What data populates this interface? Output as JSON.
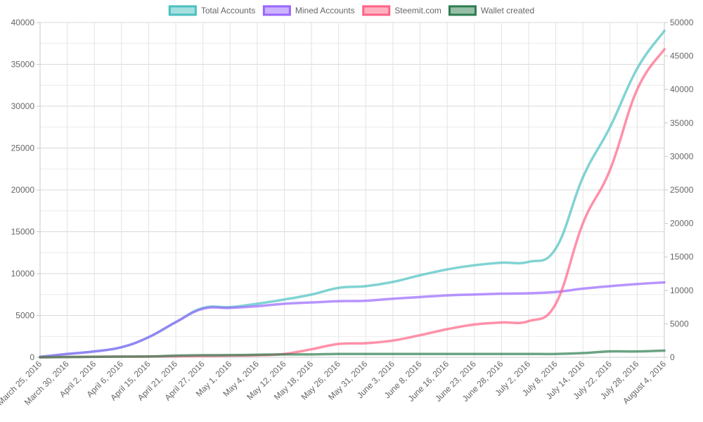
{
  "chart_data": {
    "type": "line",
    "x_labels": [
      "March 25, 2016",
      "March 30, 2016",
      "April 2, 2016",
      "April 6, 2016",
      "April 15, 2016",
      "April 21, 2016",
      "April 27, 2016",
      "May 1, 2016",
      "May 4, 2016",
      "May 12, 2016",
      "May 18, 2016",
      "May 26, 2016",
      "May 31, 2016",
      "June 3, 2016",
      "June 8, 2016",
      "June 16, 2016",
      "June 23, 2016",
      "June 28, 2016",
      "July 2, 2016",
      "July 8, 2016",
      "July 14, 2016",
      "July 22, 2016",
      "July 28, 2016",
      "August 4, 2016"
    ],
    "y_left": {
      "min": 0,
      "max": 40000,
      "ticks": [
        "0",
        "5000",
        "10000",
        "15000",
        "20000",
        "25000",
        "30000",
        "35000",
        "40000"
      ]
    },
    "y_right": {
      "min": 0,
      "max": 50000,
      "ticks": [
        "0",
        "5000",
        "10000",
        "15000",
        "20000",
        "25000",
        "30000",
        "35000",
        "40000",
        "45000",
        "50000"
      ]
    },
    "grid": true,
    "legend_position": "top",
    "series": [
      {
        "name": "Total Accounts",
        "color": "#4bc0c0",
        "axis": "left",
        "values": [
          50,
          400,
          700,
          1200,
          2400,
          4200,
          5900,
          6000,
          6400,
          6900,
          7500,
          8300,
          8500,
          9000,
          9800,
          10500,
          11000,
          11300,
          11400,
          13000,
          21500,
          27500,
          34500,
          39000
        ]
      },
      {
        "name": "Mined Accounts",
        "color": "#9966ff",
        "axis": "left",
        "values": [
          50,
          400,
          700,
          1200,
          2400,
          4200,
          5800,
          5900,
          6100,
          6400,
          6550,
          6700,
          6750,
          7000,
          7200,
          7400,
          7500,
          7600,
          7650,
          7800,
          8200,
          8500,
          8750,
          8950
        ]
      },
      {
        "name": "Steemit.com",
        "color": "#ff6384",
        "axis": "right",
        "values": [
          0,
          50,
          80,
          100,
          110,
          150,
          200,
          250,
          300,
          500,
          1200,
          2000,
          2100,
          2500,
          3300,
          4200,
          4900,
          5200,
          5400,
          8000,
          20000,
          28000,
          40000,
          46000
        ]
      },
      {
        "name": "Wallet created",
        "color": "#2e7d4f",
        "axis": "left",
        "values": [
          0,
          30,
          60,
          80,
          100,
          200,
          250,
          260,
          300,
          350,
          350,
          400,
          400,
          400,
          400,
          400,
          400,
          400,
          400,
          400,
          500,
          700,
          700,
          800
        ]
      }
    ]
  }
}
